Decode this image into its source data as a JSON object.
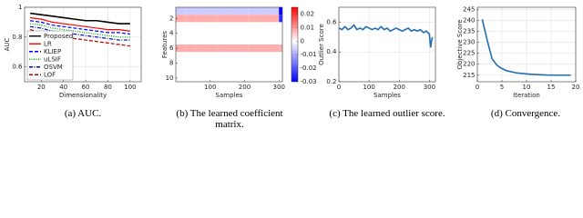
{
  "chart_data": [
    {
      "type": "line",
      "caption": "(a) AUC.",
      "xlabel": "Dimensionality",
      "ylabel": "AUC",
      "x": [
        10,
        20,
        30,
        40,
        50,
        60,
        70,
        80,
        90,
        100
      ],
      "series": [
        {
          "name": "Proposed",
          "color": "#000000",
          "dash": "solid",
          "values": [
            0.96,
            0.95,
            0.94,
            0.93,
            0.92,
            0.91,
            0.91,
            0.9,
            0.89,
            0.89
          ]
        },
        {
          "name": "LR",
          "color": "#ff0000",
          "dash": "solid",
          "values": [
            0.93,
            0.92,
            0.9,
            0.89,
            0.88,
            0.87,
            0.86,
            0.85,
            0.85,
            0.84
          ]
        },
        {
          "name": "KLIEP",
          "color": "#0000ff",
          "dash": "dashed",
          "values": [
            0.91,
            0.9,
            0.88,
            0.87,
            0.86,
            0.85,
            0.84,
            0.83,
            0.83,
            0.82
          ]
        },
        {
          "name": "uLSIF",
          "color": "#00b000",
          "dash": "dotted",
          "values": [
            0.89,
            0.88,
            0.86,
            0.85,
            0.84,
            0.83,
            0.82,
            0.81,
            0.8,
            0.8
          ]
        },
        {
          "name": "OSVM",
          "color": "#0000cc",
          "dash": "dashdot",
          "values": [
            0.87,
            0.86,
            0.84,
            0.83,
            0.82,
            0.81,
            0.8,
            0.79,
            0.78,
            0.78
          ]
        },
        {
          "name": "LOF",
          "color": "#b00000",
          "dash": "dashed",
          "values": [
            0.85,
            0.83,
            0.81,
            0.8,
            0.79,
            0.78,
            0.77,
            0.76,
            0.75,
            0.74
          ]
        }
      ],
      "xlim": [
        5,
        110
      ],
      "xticks": [
        20,
        40,
        60,
        80,
        100
      ],
      "ylim": [
        0.5,
        1
      ],
      "yticks": [
        0.6,
        0.8,
        1
      ],
      "grid": true,
      "legend": "lower left"
    },
    {
      "type": "heatmap",
      "caption": "(b) The learned coefficient matrix.",
      "xlabel": "Samples",
      "ylabel": "Features",
      "xbins": [
        0,
        30,
        60,
        90,
        120,
        150,
        180,
        210,
        240,
        270,
        300,
        310
      ],
      "y": [
        1,
        2,
        3,
        4,
        5,
        6,
        7,
        8,
        9,
        10
      ],
      "matrix": [
        [
          -0.006,
          -0.006,
          -0.006,
          -0.006,
          -0.006,
          -0.006,
          -0.006,
          -0.006,
          -0.006,
          -0.006,
          -0.03
        ],
        [
          0.008,
          0.008,
          0.008,
          0.008,
          0.008,
          0.008,
          0.008,
          0.008,
          0.008,
          0.008,
          -0.025
        ],
        [
          0,
          0,
          0,
          0,
          0,
          0,
          0,
          0,
          0,
          0,
          0
        ],
        [
          0,
          0,
          0,
          0,
          0,
          0,
          0,
          0,
          0,
          0,
          0
        ],
        [
          0,
          0,
          0,
          0,
          0,
          0,
          0,
          0,
          0,
          0,
          0
        ],
        [
          0.008,
          0.008,
          0.008,
          0.008,
          0.008,
          0.008,
          0.008,
          0.008,
          0.008,
          0.008,
          0.008
        ],
        [
          0,
          0,
          0,
          0,
          0,
          0,
          0,
          0,
          0,
          0,
          0
        ],
        [
          0,
          0,
          0,
          0,
          0,
          0,
          0,
          0,
          0,
          0,
          0
        ],
        [
          0,
          0,
          0,
          0,
          0,
          0,
          0,
          0,
          0,
          0,
          0
        ],
        [
          0,
          0,
          0,
          0,
          0,
          0,
          0,
          0,
          0,
          0,
          0
        ]
      ],
      "xlim": [
        0,
        310
      ],
      "xticks": [
        100,
        200,
        300
      ],
      "ylim": [
        0.5,
        10.5
      ],
      "yticks": [
        2,
        4,
        6,
        8,
        10
      ],
      "yinverted": true,
      "grid": false,
      "cmap": [
        "#0000ff",
        "#ffffff",
        "#ff0000"
      ],
      "clim": [
        -0.03,
        0.025
      ],
      "cticks": [
        0.02,
        0.01,
        0,
        -0.01,
        -0.02,
        -0.03
      ]
    },
    {
      "type": "line",
      "caption": "(c) The learned outlier score.",
      "xlabel": "Samples",
      "ylabel": "Outlier Score",
      "x": [
        1,
        10,
        20,
        30,
        40,
        50,
        60,
        70,
        80,
        90,
        100,
        110,
        120,
        130,
        140,
        150,
        160,
        170,
        180,
        190,
        200,
        210,
        220,
        230,
        240,
        250,
        260,
        270,
        280,
        290,
        300,
        304,
        307,
        310
      ],
      "series": [
        {
          "color": "#1f6fb4",
          "dash": "solid",
          "values": [
            0.56,
            0.55,
            0.57,
            0.55,
            0.56,
            0.58,
            0.55,
            0.56,
            0.55,
            0.57,
            0.56,
            0.55,
            0.56,
            0.55,
            0.57,
            0.55,
            0.56,
            0.54,
            0.55,
            0.56,
            0.55,
            0.54,
            0.55,
            0.56,
            0.54,
            0.55,
            0.54,
            0.55,
            0.53,
            0.54,
            0.52,
            0.43,
            0.47,
            0.5
          ]
        }
      ],
      "xlim": [
        0,
        320
      ],
      "xticks": [
        0,
        100,
        200,
        300
      ],
      "ylim": [
        0.2,
        0.7
      ],
      "yticks": [
        0.2,
        0.4,
        0.6
      ],
      "grid": true
    },
    {
      "type": "line",
      "caption": "(d) Convergence.",
      "xlabel": "Iteration",
      "ylabel": "Objective Score",
      "x": [
        1,
        2,
        3,
        4,
        5,
        6,
        7,
        8,
        9,
        10,
        11,
        12,
        13,
        14,
        15,
        16,
        17,
        18,
        19
      ],
      "series": [
        {
          "color": "#1f6fb4",
          "dash": "solid",
          "values": [
            240.5,
            231,
            222.5,
            219.5,
            218,
            217,
            216.5,
            216,
            215.8,
            215.6,
            215.4,
            215.3,
            215.2,
            215.1,
            215.05,
            215,
            215,
            215,
            215
          ]
        }
      ],
      "xlim": [
        0,
        20
      ],
      "xticks": [
        0,
        5,
        10,
        15,
        20
      ],
      "ylim": [
        212,
        246
      ],
      "yticks": [
        215,
        220,
        225,
        230,
        235,
        240,
        245
      ],
      "grid": true
    }
  ]
}
